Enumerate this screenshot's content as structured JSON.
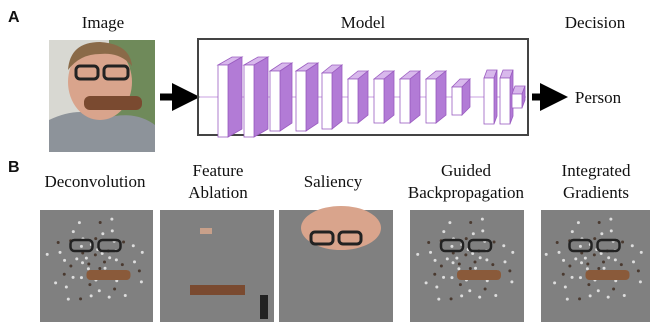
{
  "panel_a": {
    "label": "A",
    "input_title": "Image",
    "model_title": "Model",
    "decision_title": "Decision",
    "decision": "Person"
  },
  "panel_b": {
    "label": "B",
    "methods": [
      {
        "lines": [
          "Deconvolution"
        ]
      },
      {
        "lines": [
          "Feature",
          "Ablation"
        ]
      },
      {
        "lines": [
          "Saliency"
        ]
      },
      {
        "lines": [
          "Guided",
          "Backpropagation"
        ]
      },
      {
        "lines": [
          "Integrated",
          "Gradients"
        ]
      }
    ]
  }
}
